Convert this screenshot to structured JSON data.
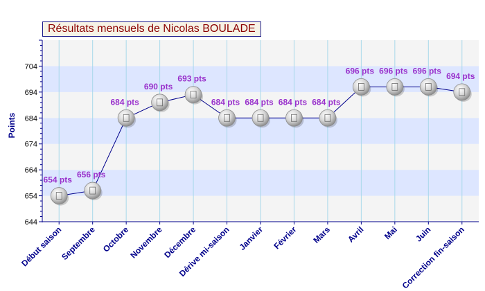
{
  "chart_data": {
    "type": "line",
    "title": "Résultats mensuels de Nicolas BOULADE",
    "xlabel": "",
    "ylabel": "Points",
    "ylim": [
      644,
      714
    ],
    "yticks": [
      "644",
      "654",
      "664",
      "674",
      "684",
      "694",
      "704"
    ],
    "grid": "vertical lines, alternating horizontal bands",
    "categories": [
      "Début saison",
      "Septembre",
      "Octobre",
      "Novembre",
      "Décembre",
      "Dérive mi-saison",
      "Janvier",
      "Février",
      "Mars",
      "Avril",
      "Mai",
      "Juin",
      "Correction fin-saison"
    ],
    "series": [
      {
        "values": [
          654,
          656,
          684,
          690,
          693,
          684,
          684,
          684,
          684,
          696,
          696,
          696,
          694
        ],
        "labels": [
          "654 pts",
          "656 pts",
          "684 pts",
          "690 pts",
          "693 pts",
          "684 pts",
          "684 pts",
          "684 pts",
          "684 pts",
          "696 pts",
          "696 pts",
          "696 pts",
          "694 pts"
        ]
      }
    ],
    "colors": {
      "line": "#00008b",
      "band_light": "#f4f4f4",
      "band_blue": "#dde6ff",
      "gridline": "#a8d8ea",
      "label": "#9932cc",
      "axis": "#00008b",
      "title": "#8b0000",
      "marker": "#c8c8c8"
    }
  }
}
